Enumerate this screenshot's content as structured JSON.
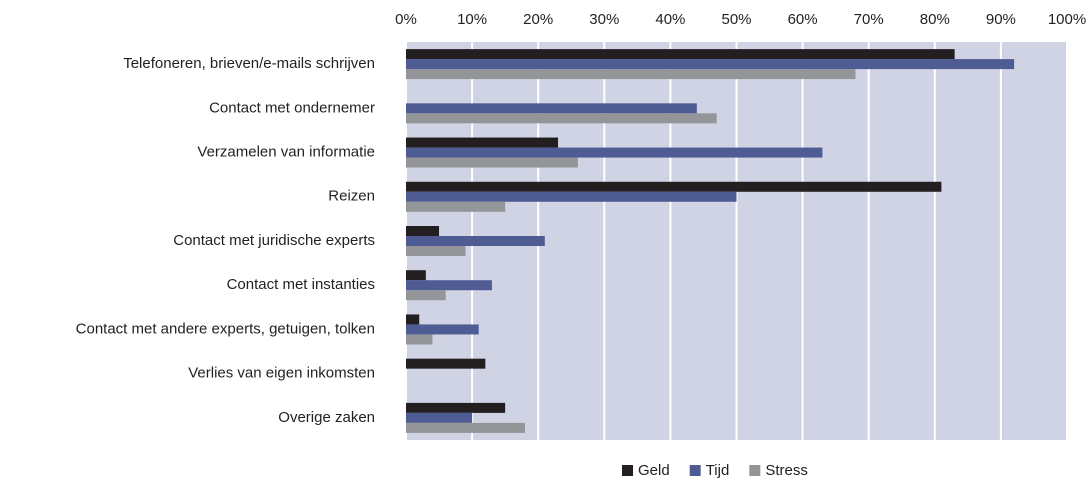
{
  "chart_data": {
    "type": "hbar",
    "categories": [
      "Telefoneren, brieven/e-mails schrijven",
      "Contact met ondernemer",
      "Verzamelen van informatie",
      "Reizen",
      "Contact met juridische experts",
      "Contact met instanties",
      "Contact met andere experts, getuigen, tolken",
      "Verlies van eigen inkomsten",
      "Overige zaken"
    ],
    "series": [
      {
        "name": "Geld",
        "color": "#231f20",
        "values": [
          83,
          0,
          23,
          81,
          5,
          3,
          2,
          12,
          15
        ]
      },
      {
        "name": "Tijd",
        "color": "#4f5b93",
        "values": [
          92,
          44,
          63,
          50,
          21,
          13,
          11,
          0,
          10
        ]
      },
      {
        "name": "Stress",
        "color": "#939598",
        "values": [
          68,
          47,
          26,
          15,
          9,
          6,
          4,
          0,
          18
        ]
      }
    ],
    "xlim": [
      0,
      100
    ],
    "xticks": [
      {
        "value": 0,
        "label": "0%"
      },
      {
        "value": 10,
        "label": "10%"
      },
      {
        "value": 20,
        "label": "20%"
      },
      {
        "value": 30,
        "label": "30%"
      },
      {
        "value": 40,
        "label": "40%"
      },
      {
        "value": 50,
        "label": "50%"
      },
      {
        "value": 60,
        "label": "60%"
      },
      {
        "value": 70,
        "label": "70%"
      },
      {
        "value": 80,
        "label": "80%"
      },
      {
        "value": 90,
        "label": "90%"
      },
      {
        "value": 100,
        "label": "100%"
      }
    ],
    "grid": true,
    "legend": "bottom"
  }
}
